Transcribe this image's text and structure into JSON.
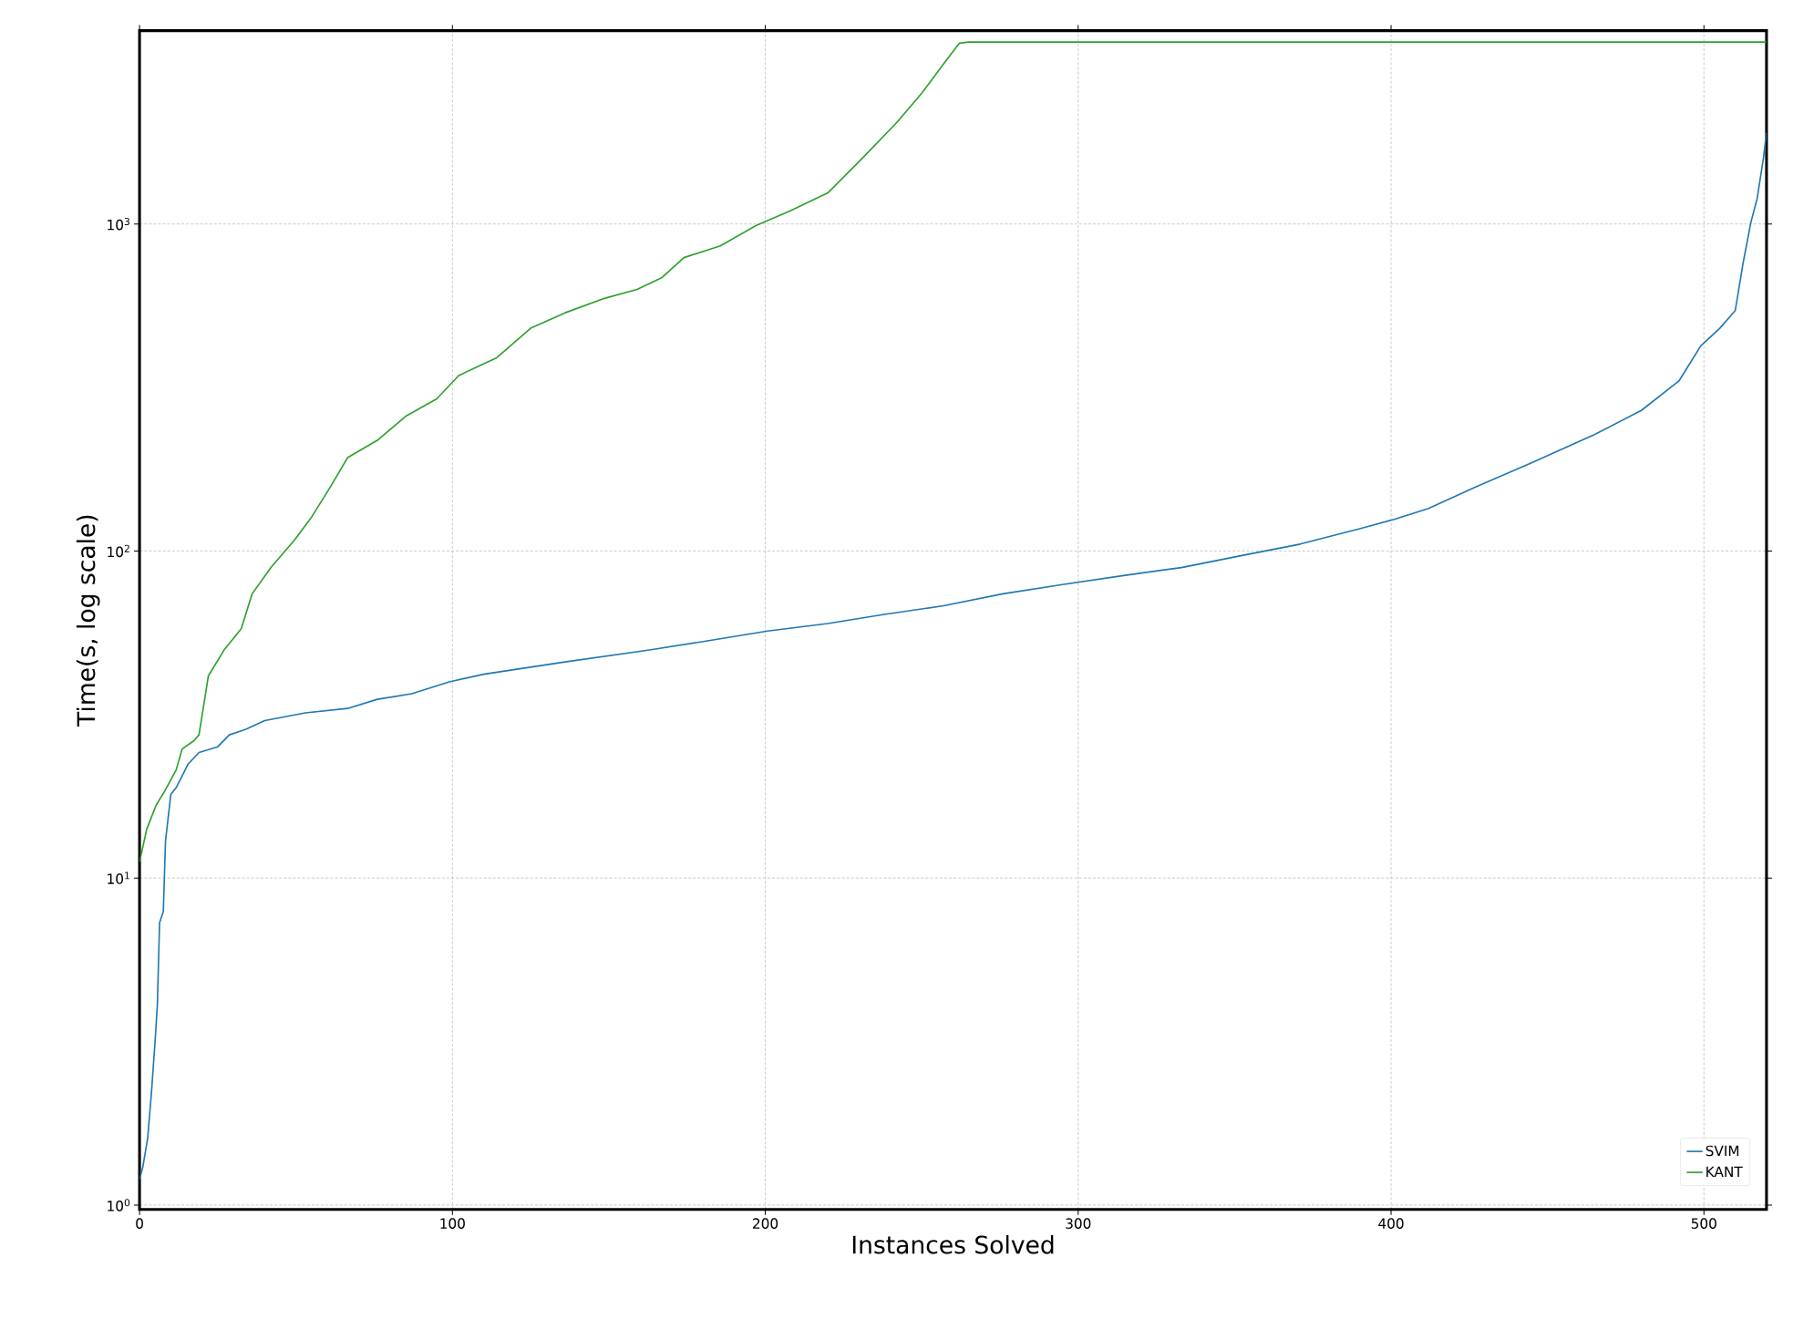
{
  "chart_data": {
    "type": "line",
    "xlabel": "Instances Solved",
    "ylabel": "Time(s, log scale)",
    "log": "y",
    "grid": true,
    "legend": "bottom right",
    "line_style": "solid",
    "marker": "none",
    "xlim": [
      0,
      520
    ],
    "ylim": [
      0.97,
      3900
    ],
    "xticks": [
      0,
      100,
      200,
      300,
      400,
      500
    ],
    "yticks": [
      {
        "value": 1,
        "label": "10$^{0}$"
      },
      {
        "value": 10,
        "label": "10$^{1}$"
      },
      {
        "value": 100,
        "label": "10$^{2}$"
      },
      {
        "value": 1000,
        "label": "10$^{3}$"
      }
    ],
    "series": [
      {
        "name": "SVIM",
        "color": "#1f77b4",
        "x": [
          0,
          1,
          2.6,
          3.8,
          5,
          5.7,
          6.4,
          7.6,
          8.3,
          10,
          11.7,
          13.6,
          15.5,
          19,
          25,
          28.7,
          34,
          40,
          53,
          66.5,
          76,
          87,
          99,
          110,
          136,
          163,
          182,
          200.7,
          220,
          238,
          257,
          276,
          295,
          314,
          333,
          352,
          371,
          390,
          401,
          412,
          427,
          446,
          465,
          480,
          492,
          499,
          505,
          510,
          512.5,
          515,
          517,
          519,
          520
        ],
        "values": [
          1.2,
          1.3,
          1.6,
          2.2,
          3.2,
          4.1,
          7.3,
          7.9,
          13,
          18,
          18.9,
          20.5,
          22.3,
          24.2,
          25.2,
          27.4,
          28.5,
          30.3,
          32,
          33,
          35.2,
          36.6,
          39.8,
          42,
          45.8,
          49.8,
          53.2,
          56.9,
          60,
          64,
          68,
          74,
          79,
          84,
          89,
          96.7,
          105,
          117,
          125,
          135,
          157,
          188,
          227,
          269,
          331,
          424,
          479,
          543,
          758,
          1012,
          1195,
          1585,
          1900
        ]
      },
      {
        "name": "KANT",
        "color": "#2ca02c",
        "x": [
          0,
          2.3,
          5.3,
          8,
          11.7,
          13.6,
          17.4,
          19,
          22,
          27,
          32.5,
          36,
          42,
          49.5,
          55,
          61,
          66.5,
          76,
          85,
          95,
          102,
          114,
          125,
          136,
          148,
          159,
          167,
          174,
          185.6,
          197,
          208,
          220,
          231,
          242,
          250,
          257,
          262,
          265,
          520
        ],
        "values": [
          11.2,
          14.1,
          16.7,
          18.4,
          21.4,
          24.8,
          26.3,
          27.4,
          41.5,
          49.8,
          57.8,
          74,
          89,
          108,
          127,
          157,
          193,
          218,
          258,
          292,
          344,
          389,
          480,
          535,
          590,
          631,
          686,
          789,
          857,
          988,
          1097,
          1245,
          1588,
          2042,
          2510,
          3090,
          3570,
          3600,
          3600
        ]
      }
    ]
  }
}
